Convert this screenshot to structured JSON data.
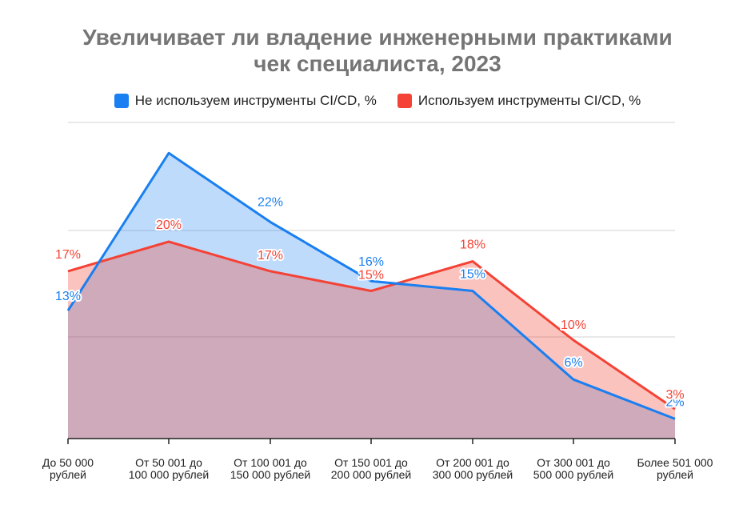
{
  "title_line1": "Увеличивает ли владение инженерными практиками",
  "title_line2": "чек специалиста, 2023",
  "chart_data": {
    "type": "area",
    "title": "Увеличивает ли владение инженерными практиками чек специалиста, 2023",
    "categories": [
      [
        "До 50 000",
        "рублей"
      ],
      [
        "От 50 001 до",
        "100 000 рублей"
      ],
      [
        "От 100 001 до",
        "150 000 рублей"
      ],
      [
        "От 150 001 до",
        "200 000 рублей"
      ],
      [
        "От 200 001 до",
        "300 000 рублей"
      ],
      [
        "От 300 001 до",
        "500 000 рублей"
      ],
      [
        "Более 501 000",
        "рублей"
      ]
    ],
    "series": [
      {
        "name": "Не используем инструменты CI/CD, %",
        "color": "#1a7ff0",
        "values": [
          13,
          29,
          22,
          16,
          15,
          6,
          2
        ],
        "labels": [
          "13%",
          "",
          "22%",
          "16%",
          "15%",
          "6%",
          "2%"
        ]
      },
      {
        "name": "Используем инструменты CI/CD, %",
        "color": "#f44336",
        "values": [
          17,
          20,
          17,
          15,
          18,
          10,
          3
        ],
        "labels": [
          "17%",
          "20%",
          "17%",
          "15%",
          "18%",
          "10%",
          "3%"
        ]
      }
    ],
    "grid": true,
    "legend": "top"
  }
}
